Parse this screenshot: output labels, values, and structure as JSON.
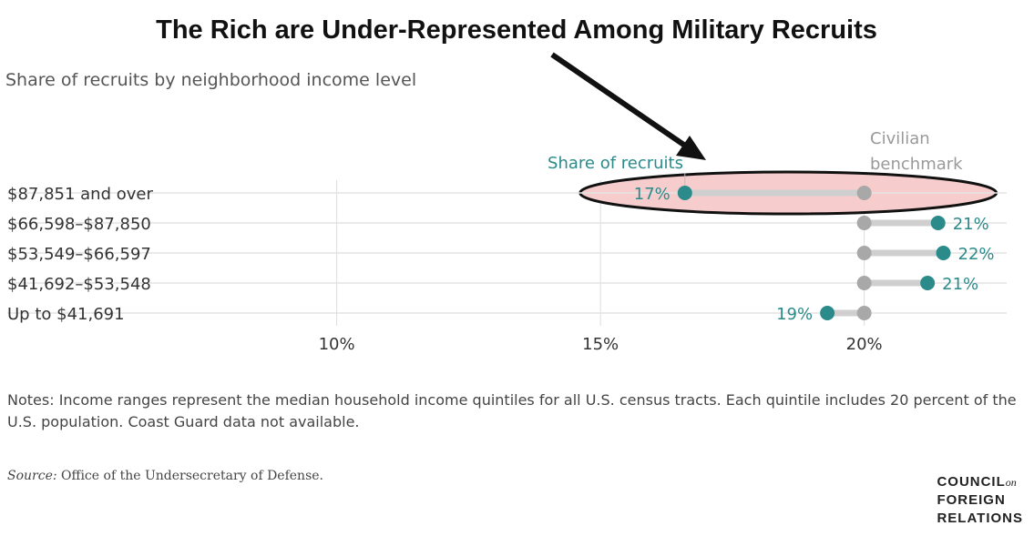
{
  "chart_data": {
    "type": "dot-range",
    "title": "The Rich are Under-Represented Among Military Recruits",
    "subtitle": "Share of recruits by neighborhood income level",
    "categories": [
      "$87,851 and over",
      "$66,598–$87,850",
      "$53,549–$66,597",
      "$41,692–$53,548",
      "Up to $41,691"
    ],
    "series": [
      {
        "name": "Share of recruits",
        "values": [
          16.6,
          21.4,
          21.5,
          21.2,
          19.3
        ],
        "labels": [
          "17%",
          "21%",
          "22%",
          "21%",
          "19%"
        ],
        "color": "#2b8a8a"
      },
      {
        "name": "Civilian benchmark",
        "values": [
          20,
          20,
          20,
          20,
          20
        ],
        "color": "#a8a8a8"
      }
    ],
    "xticks": [
      10,
      15,
      20
    ],
    "xtick_labels": [
      "10%",
      "15%",
      "20%"
    ],
    "xlim": [
      6,
      22.7
    ],
    "grid": true,
    "highlight_category": "$87,851 and over",
    "highlight_color": "#f6cccc"
  },
  "legend": {
    "recruits_label": "Share of recruits",
    "benchmark_line1": "Civilian",
    "benchmark_line2": "benchmark"
  },
  "notes": "Notes: Income ranges represent the median household income quintiles for all U.S. census tracts. Each quintile includes 20 percent of the U.S. population. Coast Guard data not available.",
  "source_label": "Source:",
  "source_text": "Office of the Undersecretary of Defense.",
  "logo": {
    "line1": "COUNCIL",
    "on": "on",
    "line2": "FOREIGN",
    "line3": "RELATIONS"
  }
}
